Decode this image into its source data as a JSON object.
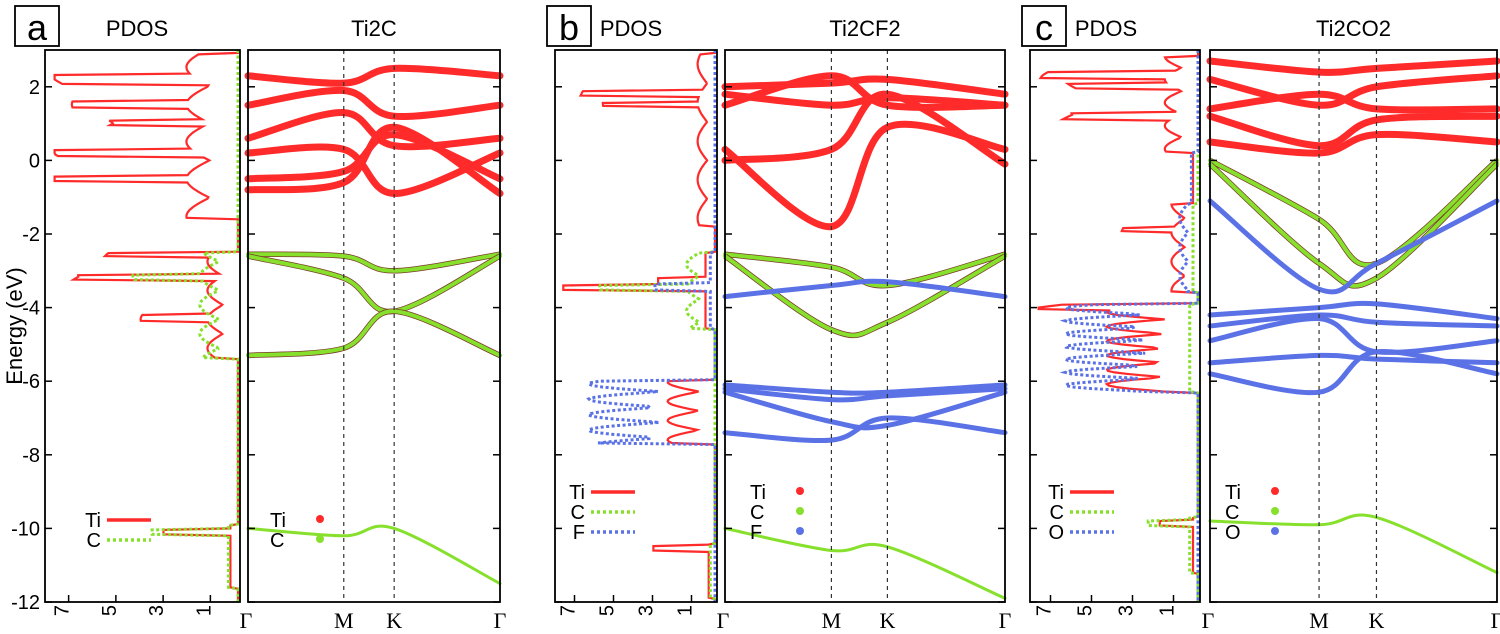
{
  "ylabel": "Energy (eV)",
  "ylim": [
    -12,
    3
  ],
  "yticks": [
    "2",
    "0",
    "-2",
    "-4",
    "-6",
    "-8",
    "-10",
    "-12"
  ],
  "pdos_xticks": [
    "7",
    "5",
    "3",
    "1"
  ],
  "kpath": [
    "Γ",
    "M",
    "K",
    "Γ"
  ],
  "colors": {
    "Ti": "#ff2a2a",
    "C": "#86e02c",
    "F": "#5a72e6",
    "O": "#5a72e6"
  },
  "panels": [
    {
      "letter": "a",
      "pdos_title": "PDOS",
      "band_title": "Ti2C",
      "pdos_legend": [
        "Ti",
        "C"
      ],
      "band_legend": [
        "Ti",
        "C"
      ]
    },
    {
      "letter": "b",
      "pdos_title": "PDOS",
      "band_title": "Ti2CF2",
      "pdos_legend": [
        "Ti",
        "C",
        "F"
      ],
      "band_legend": [
        "Ti",
        "C",
        "F"
      ]
    },
    {
      "letter": "c",
      "pdos_title": "PDOS",
      "band_title": "Ti2CO2",
      "pdos_legend": [
        "Ti",
        "C",
        "O"
      ],
      "band_legend": [
        "Ti",
        "C",
        "O"
      ]
    }
  ],
  "chart_data": [
    {
      "type": "line",
      "title": "Ti2C",
      "ylabel": "Energy (eV)",
      "ylim": [
        -12,
        3
      ],
      "x": [
        "Γ",
        "M",
        "K",
        "Γ"
      ],
      "series": [
        {
          "name": "Ti",
          "energies": [
            [
              2.3,
              2.1,
              2.5,
              2.3
            ],
            [
              1.5,
              1.9,
              1.2,
              1.5
            ],
            [
              0.6,
              1.3,
              0.4,
              0.6
            ],
            [
              0.2,
              0.3,
              -0.9,
              0.2
            ],
            [
              -0.5,
              -0.3,
              0.7,
              -0.5
            ],
            [
              -0.8,
              -0.6,
              0.9,
              -0.9
            ]
          ]
        },
        {
          "name": "C",
          "energies": [
            [
              -2.55,
              -2.6,
              -3.0,
              -2.55
            ],
            [
              -2.6,
              -3.2,
              -4.1,
              -2.6
            ],
            [
              -5.3,
              -5.1,
              -4.1,
              -5.3
            ],
            [
              -10.0,
              -10.2,
              -10.0,
              -11.5
            ]
          ]
        }
      ]
    },
    {
      "type": "line",
      "title": "Ti2CF2",
      "ylabel": "Energy (eV)",
      "ylim": [
        -12,
        3
      ],
      "x": [
        "Γ",
        "M",
        "K",
        "Γ"
      ],
      "series": [
        {
          "name": "Ti",
          "energies": [
            [
              2.0,
              2.1,
              2.2,
              1.8
            ],
            [
              1.5,
              2.3,
              1.5,
              1.5
            ],
            [
              0.3,
              -1.8,
              0.9,
              0.3
            ],
            [
              0.0,
              0.3,
              1.8,
              -0.1
            ],
            [
              1.8,
              1.5,
              1.7,
              1.5
            ]
          ]
        },
        {
          "name": "C",
          "energies": [
            [
              -2.55,
              -2.9,
              -3.4,
              -2.55
            ],
            [
              -2.6,
              -4.6,
              -4.4,
              -2.6
            ],
            [
              -10.0,
              -10.6,
              -10.5,
              -11.9
            ]
          ]
        },
        {
          "name": "F",
          "energies": [
            [
              -3.7,
              -3.4,
              -3.3,
              -3.7
            ],
            [
              -6.1,
              -6.3,
              -6.3,
              -6.1
            ],
            [
              -6.2,
              -6.5,
              -6.4,
              -6.2
            ],
            [
              -6.3,
              -7.1,
              -7.2,
              -6.3
            ],
            [
              -7.4,
              -7.6,
              -7.0,
              -7.4
            ]
          ]
        }
      ]
    },
    {
      "type": "line",
      "title": "Ti2CO2",
      "ylabel": "Energy (eV)",
      "ylim": [
        -12,
        3
      ],
      "x": [
        "Γ",
        "M",
        "K",
        "Γ"
      ],
      "series": [
        {
          "name": "Ti",
          "energies": [
            [
              2.7,
              2.4,
              2.5,
              2.7
            ],
            [
              2.2,
              1.5,
              2.0,
              2.3
            ],
            [
              1.4,
              1.8,
              1.4,
              1.4
            ],
            [
              1.2,
              0.4,
              1.1,
              1.2
            ],
            [
              0.5,
              0.2,
              0.7,
              0.5
            ]
          ]
        },
        {
          "name": "C",
          "energies": [
            [
              0.0,
              -1.6,
              -2.8,
              0.0
            ],
            [
              -0.1,
              -2.8,
              -3.2,
              -0.1
            ],
            [
              -9.8,
              -9.9,
              -9.7,
              -11.2
            ]
          ]
        },
        {
          "name": "O",
          "energies": [
            [
              -1.1,
              -3.5,
              -2.8,
              -1.1
            ],
            [
              -4.2,
              -4.0,
              -3.9,
              -4.3
            ],
            [
              -4.5,
              -4.2,
              -4.4,
              -4.5
            ],
            [
              -4.9,
              -4.3,
              -5.2,
              -4.9
            ],
            [
              -5.5,
              -5.3,
              -5.4,
              -5.5
            ],
            [
              -5.8,
              -6.3,
              -5.2,
              -5.8
            ]
          ]
        }
      ]
    }
  ]
}
